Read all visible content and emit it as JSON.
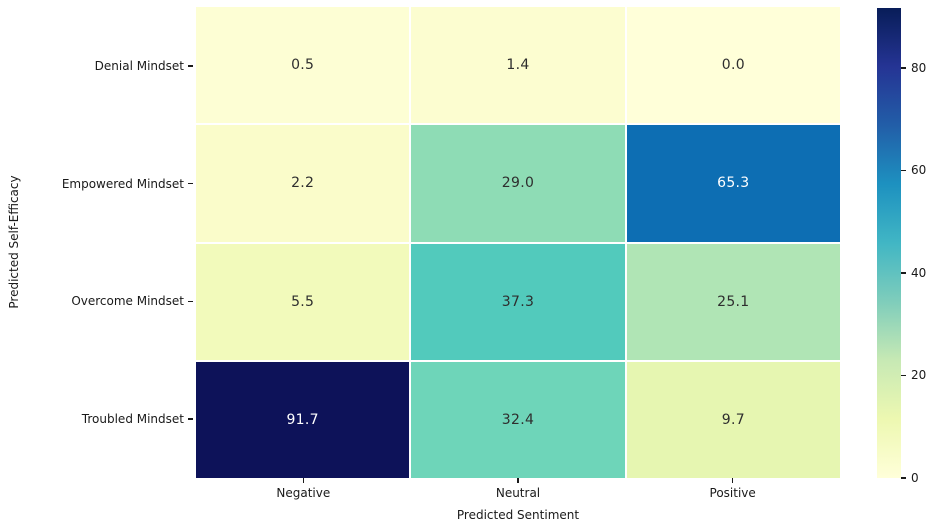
{
  "chart_data": {
    "type": "heatmap",
    "title": "",
    "xlabel": "Predicted Sentiment",
    "ylabel": "Predicted Self-Efficacy",
    "x_categories": [
      "Negative",
      "Neutral",
      "Positive"
    ],
    "y_categories": [
      "Denial Mindset",
      "Empowered Mindset",
      "Overcome Mindset",
      "Troubled Mindset"
    ],
    "values": [
      [
        0.5,
        1.4,
        0.0
      ],
      [
        2.2,
        29.0,
        65.3
      ],
      [
        5.5,
        37.3,
        25.1
      ],
      [
        91.7,
        32.4,
        9.7
      ]
    ],
    "value_format": "one_decimal",
    "colormap": "YlGnBu",
    "vmin": 0,
    "vmax": 91.7,
    "colorbar_ticks": [
      0,
      20,
      40,
      60,
      80
    ],
    "colorbar_position": "right",
    "grid": false,
    "cell_colors": [
      [
        "#fdfed4",
        "#fcfdd0",
        "#ffffd9"
      ],
      [
        "#fafcca",
        "#8edcb5",
        "#0d6eb3"
      ],
      [
        "#f2fabb",
        "#52cabc",
        "#b0e5b5"
      ],
      [
        "#0d1259",
        "#6ed5b9",
        "#e6f6b1"
      ]
    ],
    "cell_text_colors": [
      [
        "#2e2e2e",
        "#2e2e2e",
        "#2e2e2e"
      ],
      [
        "#2e2e2e",
        "#2e2e2e",
        "#ffffff"
      ],
      [
        "#2e2e2e",
        "#2e2e2e",
        "#2e2e2e"
      ],
      [
        "#ffffff",
        "#2e2e2e",
        "#2e2e2e"
      ]
    ],
    "tick_color": "#1a1a1a"
  }
}
